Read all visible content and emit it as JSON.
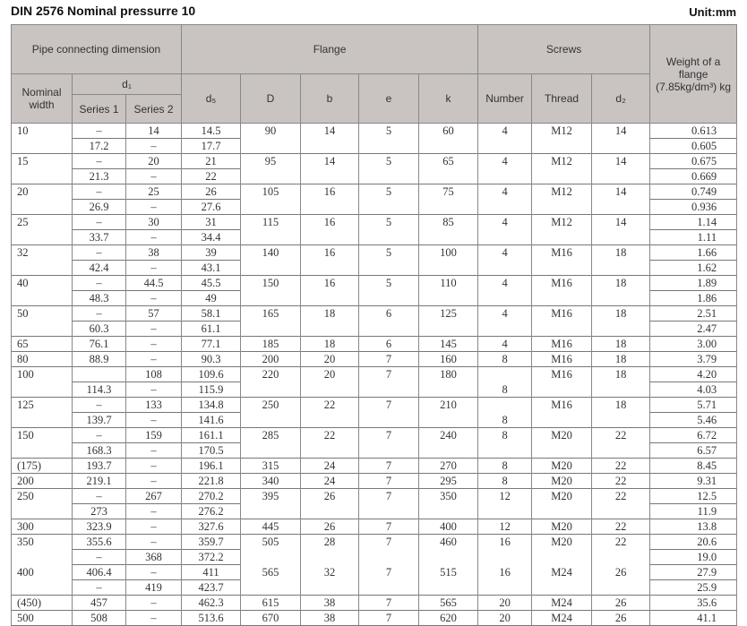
{
  "title": "DIN 2576   Nominal pressurre 10",
  "unit": "Unit:mm",
  "header": {
    "pipe": "Pipe connecting dimension",
    "flange": "Flange",
    "screws": "Screws",
    "weight": "Weight of a flange (7.85kg/dm³) kg",
    "nominal": "Nominal width",
    "d1": "d₁",
    "series1": "Series 1",
    "series2": "Series 2",
    "d5": "d₅",
    "D": "D",
    "b": "b",
    "e": "e",
    "k": "k",
    "number": "Number",
    "thread": "Thread",
    "d2": "d₂"
  },
  "rows": [
    {
      "sub": false,
      "c": [
        "10",
        "–",
        "14",
        "14.5",
        "90",
        "14",
        "5",
        "60",
        "4",
        "M12",
        "14",
        "0.613"
      ]
    },
    {
      "sub": true,
      "c": [
        "",
        "17.2",
        "–",
        "17.7",
        "",
        "",
        "",
        "",
        "",
        "",
        "",
        "0.605"
      ]
    },
    {
      "sub": false,
      "c": [
        "15",
        "–",
        "20",
        "21",
        "95",
        "14",
        "5",
        "65",
        "4",
        "M12",
        "14",
        "0.675"
      ]
    },
    {
      "sub": true,
      "c": [
        "",
        "21.3",
        "–",
        "22",
        "",
        "",
        "",
        "",
        "",
        "",
        "",
        "0.669"
      ]
    },
    {
      "sub": false,
      "c": [
        "20",
        "–",
        "25",
        "26",
        "105",
        "16",
        "5",
        "75",
        "4",
        "M12",
        "14",
        "0.749"
      ]
    },
    {
      "sub": true,
      "c": [
        "",
        "26.9",
        "–",
        "27.6",
        "",
        "",
        "",
        "",
        "",
        "",
        "",
        "0.936"
      ]
    },
    {
      "sub": false,
      "c": [
        "25",
        "–",
        "30",
        "31",
        "115",
        "16",
        "5",
        "85",
        "4",
        "M12",
        "14",
        "1.14"
      ]
    },
    {
      "sub": true,
      "c": [
        "",
        "33.7",
        "–",
        "34.4",
        "",
        "",
        "",
        "",
        "",
        "",
        "",
        "1.11"
      ]
    },
    {
      "sub": false,
      "c": [
        "32",
        "–",
        "38",
        "39",
        "140",
        "16",
        "5",
        "100",
        "4",
        "M16",
        "18",
        "1.66"
      ]
    },
    {
      "sub": true,
      "c": [
        "",
        "42.4",
        "–",
        "43.1",
        "",
        "",
        "",
        "",
        "",
        "",
        "",
        "1.62"
      ]
    },
    {
      "sub": false,
      "c": [
        "40",
        "–",
        "44.5",
        "45.5",
        "150",
        "16",
        "5",
        "110",
        "4",
        "M16",
        "18",
        "1.89"
      ]
    },
    {
      "sub": true,
      "c": [
        "",
        "48.3",
        "–",
        "49",
        "",
        "",
        "",
        "",
        "",
        "",
        "",
        "1.86"
      ]
    },
    {
      "sub": false,
      "c": [
        "50",
        "–",
        "57",
        "58.1",
        "165",
        "18",
        "6",
        "125",
        "4",
        "M16",
        "18",
        "2.51"
      ]
    },
    {
      "sub": true,
      "c": [
        "",
        "60.3",
        "–",
        "61.1",
        "",
        "",
        "",
        "",
        "",
        "",
        "",
        "2.47"
      ]
    },
    {
      "sub": false,
      "c": [
        "65",
        "76.1",
        "–",
        "77.1",
        "185",
        "18",
        "6",
        "145",
        "4",
        "M16",
        "18",
        "3.00"
      ]
    },
    {
      "sub": false,
      "c": [
        "80",
        "88.9",
        "–",
        "90.3",
        "200",
        "20",
        "7",
        "160",
        "8",
        "M16",
        "18",
        "3.79"
      ]
    },
    {
      "sub": false,
      "c": [
        "100",
        "",
        "108",
        "109.6",
        "220",
        "20",
        "7",
        "180",
        "",
        "M16",
        "18",
        "4.20"
      ]
    },
    {
      "sub": true,
      "c": [
        "",
        "114.3",
        "–",
        "115.9",
        "",
        "",
        "",
        "",
        "8",
        "",
        "",
        "4.03"
      ]
    },
    {
      "sub": false,
      "c": [
        "125",
        "–",
        "133",
        "134.8",
        "250",
        "22",
        "7",
        "210",
        "",
        "M16",
        "18",
        "5.71"
      ]
    },
    {
      "sub": true,
      "c": [
        "",
        "139.7",
        "–",
        "141.6",
        "",
        "",
        "",
        "",
        "8",
        "",
        "",
        "5.46"
      ]
    },
    {
      "sub": false,
      "c": [
        "150",
        "–",
        "159",
        "161.1",
        "285",
        "22",
        "7",
        "240",
        "8",
        "M20",
        "22",
        "6.72"
      ]
    },
    {
      "sub": true,
      "c": [
        "",
        "168.3",
        "–",
        "170.5",
        "",
        "",
        "",
        "",
        "",
        "",
        "",
        "6.57"
      ]
    },
    {
      "sub": false,
      "c": [
        "(175)",
        "193.7",
        "–",
        "196.1",
        "315",
        "24",
        "7",
        "270",
        "8",
        "M20",
        "22",
        "8.45"
      ]
    },
    {
      "sub": false,
      "c": [
        "200",
        "219.1",
        "–",
        "221.8",
        "340",
        "24",
        "7",
        "295",
        "8",
        "M20",
        "22",
        "9.31"
      ]
    },
    {
      "sub": false,
      "c": [
        "250",
        "–",
        "267",
        "270.2",
        "395",
        "26",
        "7",
        "350",
        "12",
        "M20",
        "22",
        "12.5"
      ]
    },
    {
      "sub": true,
      "c": [
        "",
        "273",
        "–",
        "276.2",
        "",
        "",
        "",
        "",
        "",
        "",
        "",
        "11.9"
      ]
    },
    {
      "sub": false,
      "c": [
        "300",
        "323.9",
        "–",
        "327.6",
        "445",
        "26",
        "7",
        "400",
        "12",
        "M20",
        "22",
        "13.8"
      ]
    },
    {
      "sub": false,
      "c": [
        "350",
        "355.6",
        "–",
        "359.7",
        "505",
        "28",
        "7",
        "460",
        "16",
        "M20",
        "22",
        "20.6"
      ]
    },
    {
      "sub": true,
      "c": [
        "",
        "–",
        "368",
        "372.2",
        "",
        "",
        "",
        "",
        "",
        "",
        "",
        "19.0"
      ]
    },
    {
      "sub": true,
      "c": [
        "400",
        "406.4",
        "–",
        "411",
        "565",
        "32",
        "7",
        "515",
        "16",
        "M24",
        "26",
        "27.9"
      ]
    },
    {
      "sub": true,
      "c": [
        "",
        "–",
        "419",
        "423.7",
        "",
        "",
        "",
        "",
        "",
        "",
        "",
        "25.9"
      ]
    },
    {
      "sub": false,
      "c": [
        "(450)",
        "457",
        "–",
        "462.3",
        "615",
        "38",
        "7",
        "565",
        "20",
        "M24",
        "26",
        "35.6"
      ]
    },
    {
      "sub": false,
      "c": [
        "500",
        "508",
        "–",
        "513.6",
        "670",
        "38",
        "7",
        "620",
        "20",
        "M24",
        "26",
        "41.1"
      ]
    }
  ]
}
